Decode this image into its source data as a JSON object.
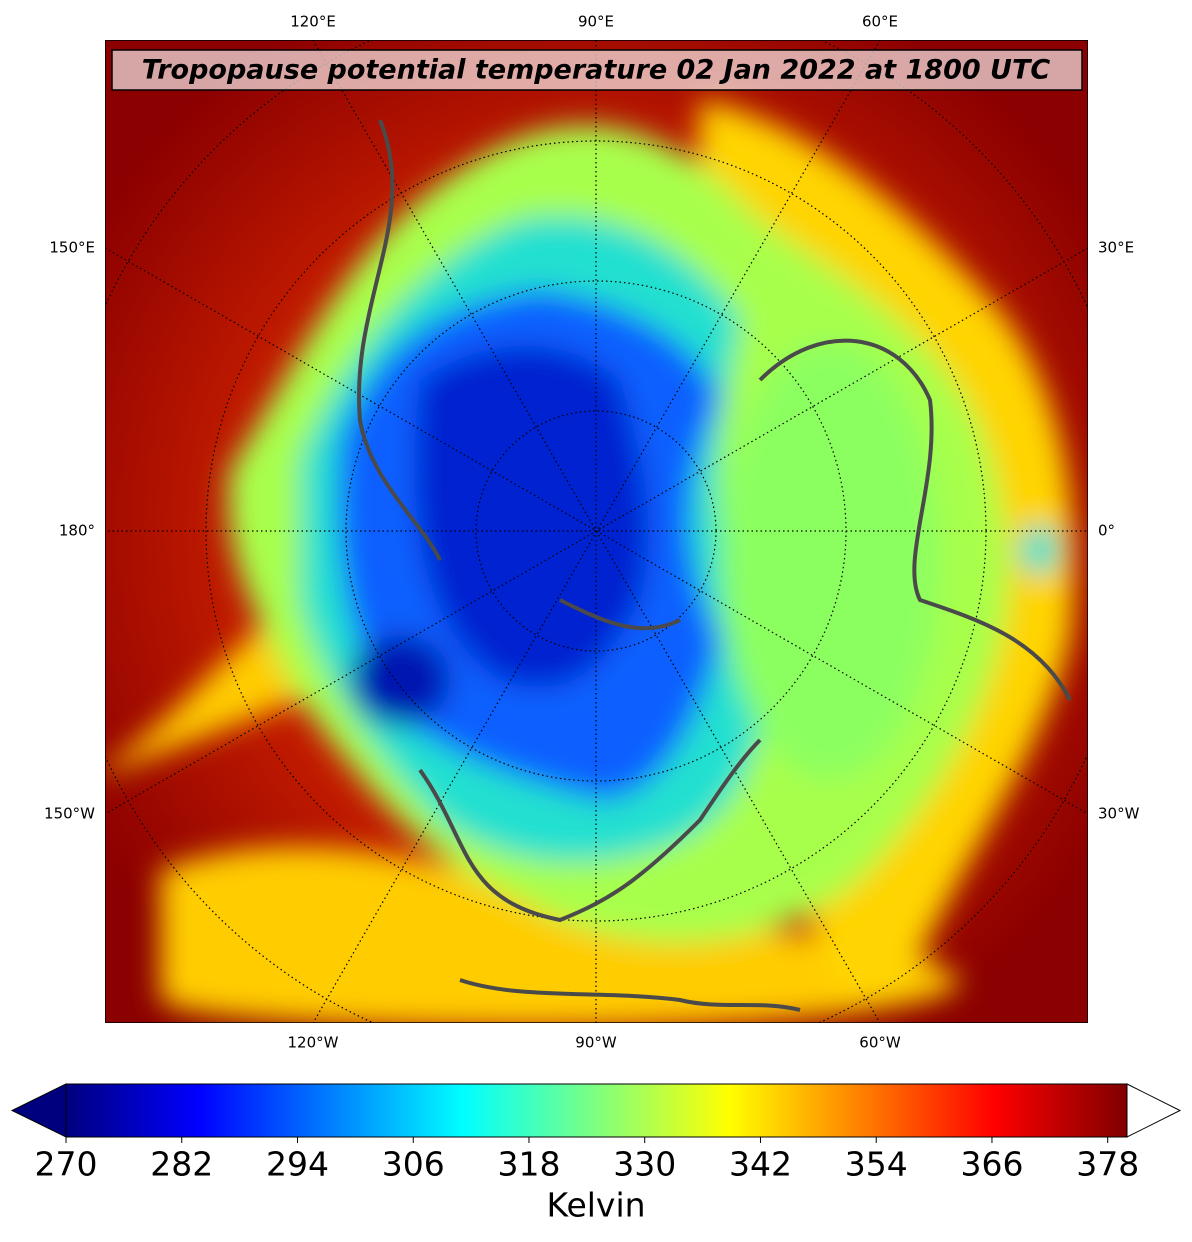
{
  "title": "Tropopause potential temperature 02 Jan 2022 at 1800 UTC",
  "map": {
    "top_labels": [
      "120°E",
      "90°E",
      "60°E"
    ],
    "bottom_labels": [
      "120°W",
      "90°W",
      "60°W"
    ],
    "left_labels": [
      "150°E",
      "180°",
      "150°W"
    ],
    "right_labels": [
      "30°E",
      "0°",
      "30°W"
    ]
  },
  "colorbar": {
    "label": "Kelvin",
    "colormap": "jet",
    "lim": [
      270,
      380
    ],
    "ticks": [
      270,
      282,
      294,
      306,
      318,
      330,
      342,
      354,
      366,
      378
    ]
  }
}
